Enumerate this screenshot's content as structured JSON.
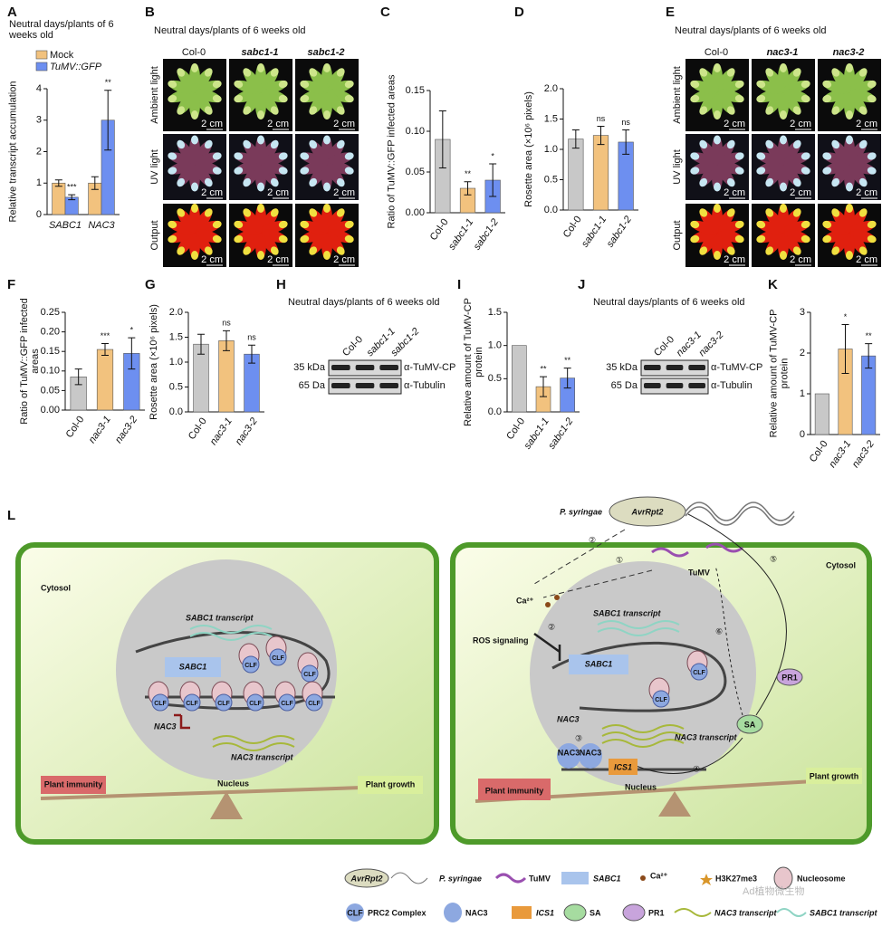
{
  "chart_data": [
    {
      "type": "bar",
      "label": "A",
      "title": "Neutral days/plants of 6 weeks old",
      "ylabel": "Relative transcript accumulation",
      "categories": [
        "SABC1",
        "NAC3"
      ],
      "series": [
        {
          "name": "Mock",
          "color": "#f2c27e",
          "values": [
            1.0,
            1.0
          ],
          "errors": [
            0.1,
            0.2
          ],
          "significance": [
            null,
            null
          ]
        },
        {
          "name": "TuMV::GFP",
          "color": "#6d8ff0",
          "values": [
            0.55,
            3.0
          ],
          "errors": [
            0.08,
            0.95
          ],
          "significance": [
            "***",
            "**"
          ]
        }
      ],
      "ylim": [
        0,
        4
      ],
      "yticks": [
        0,
        1,
        2,
        3,
        4
      ]
    },
    {
      "type": "bar",
      "label": "C",
      "ylabel": "Ratio of TuMV::GFP infected areas",
      "categories": [
        "Col-0",
        "sabc1-1",
        "sabc1-2"
      ],
      "colors": [
        "#c8c8c8",
        "#f2c27e",
        "#6d8ff0"
      ],
      "values": [
        0.09,
        0.03,
        0.04
      ],
      "errors": [
        0.035,
        0.008,
        0.02
      ],
      "significance": [
        null,
        "**",
        "*"
      ],
      "ylim": [
        0,
        0.15
      ],
      "yticks": [
        {
          "value": 0,
          "label": "0.00"
        },
        {
          "value": 0.05,
          "label": "0.05"
        },
        {
          "value": 0.1,
          "label": "0.10"
        },
        {
          "value": 0.15,
          "label": "0.15"
        }
      ]
    },
    {
      "type": "bar",
      "label": "D",
      "ylabel": "Rosette area (×10⁶ pixels)",
      "categories": [
        "Col-0",
        "sabc1-1",
        "sabc1-2"
      ],
      "colors": [
        "#c8c8c8",
        "#f2c27e",
        "#6d8ff0"
      ],
      "values": [
        1.17,
        1.23,
        1.12
      ],
      "errors": [
        0.15,
        0.15,
        0.2
      ],
      "significance": [
        null,
        "ns",
        "ns"
      ],
      "ylim": [
        0,
        2
      ],
      "yticks": [
        {
          "value": 0,
          "label": "0.0"
        },
        {
          "value": 0.5,
          "label": "0.5"
        },
        {
          "value": 1,
          "label": "1.0"
        },
        {
          "value": 1.5,
          "label": "1.5"
        },
        {
          "value": 2,
          "label": "2.0"
        }
      ]
    },
    {
      "type": "bar",
      "label": "F",
      "ylabel": "Ratio of TuMV::GFP infected areas",
      "categories": [
        "Col-0",
        "nac3-1",
        "nac3-2"
      ],
      "colors": [
        "#c8c8c8",
        "#f2c27e",
        "#6d8ff0"
      ],
      "values": [
        0.085,
        0.155,
        0.145
      ],
      "errors": [
        0.02,
        0.015,
        0.04
      ],
      "significance": [
        null,
        "***",
        "*"
      ],
      "ylim": [
        0,
        0.25
      ],
      "yticks": [
        {
          "value": 0,
          "label": "0.00"
        },
        {
          "value": 0.05,
          "label": "0.05"
        },
        {
          "value": 0.1,
          "label": "0.10"
        },
        {
          "value": 0.15,
          "label": "0.15"
        },
        {
          "value": 0.2,
          "label": "0.20"
        },
        {
          "value": 0.25,
          "label": "0.25"
        }
      ]
    },
    {
      "type": "bar",
      "label": "G",
      "ylabel": "Rosette area (×10⁶ pixels)",
      "categories": [
        "Col-0",
        "nac3-1",
        "nac3-2"
      ],
      "colors": [
        "#c8c8c8",
        "#f2c27e",
        "#6d8ff0"
      ],
      "values": [
        1.36,
        1.43,
        1.16
      ],
      "errors": [
        0.2,
        0.2,
        0.18
      ],
      "significance": [
        null,
        "ns",
        "ns"
      ],
      "ylim": [
        0,
        2
      ],
      "yticks": [
        {
          "value": 0,
          "label": "0.0"
        },
        {
          "value": 0.5,
          "label": "0.5"
        },
        {
          "value": 1,
          "label": "1.0"
        },
        {
          "value": 1.5,
          "label": "1.5"
        },
        {
          "value": 2,
          "label": "2.0"
        }
      ]
    },
    {
      "type": "bar",
      "label": "I",
      "ylabel": "Relative amount of TuMV-CP protein",
      "categories": [
        "Col-0",
        "sabc1-1",
        "sabc1-2"
      ],
      "colors": [
        "#c8c8c8",
        "#f2c27e",
        "#6d8ff0"
      ],
      "values": [
        1.0,
        0.38,
        0.51
      ],
      "errors": [
        0,
        0.15,
        0.15
      ],
      "significance": [
        null,
        "**",
        "**"
      ],
      "ylim": [
        0,
        1.5
      ],
      "yticks": [
        {
          "value": 0,
          "label": "0.0"
        },
        {
          "value": 0.5,
          "label": "0.5"
        },
        {
          "value": 1,
          "label": "1.0"
        },
        {
          "value": 1.5,
          "label": "1.5"
        }
      ]
    },
    {
      "type": "bar",
      "label": "K",
      "ylabel": "Relative amount of TuMV-CP protein",
      "categories": [
        "Col-0",
        "nac3-1",
        "nac3-2"
      ],
      "colors": [
        "#c8c8c8",
        "#f2c27e",
        "#6d8ff0"
      ],
      "values": [
        1.0,
        2.1,
        1.93
      ],
      "errors": [
        0,
        0.6,
        0.3
      ],
      "significance": [
        null,
        "*",
        "**"
      ],
      "ylim": [
        0,
        3
      ],
      "yticks": [
        0,
        1,
        2,
        3
      ]
    }
  ],
  "image_panels": [
    {
      "label": "B",
      "title": "Neutral days/plants of 6 weeks old",
      "columns": [
        "Col-0",
        "sabc1-1",
        "sabc1-2"
      ],
      "rows": [
        "Ambient light",
        "UV light",
        "Output"
      ],
      "scale": "2 cm"
    },
    {
      "label": "E",
      "title": "Neutral days/plants of 6 weeks old",
      "columns": [
        "Col-0",
        "nac3-1",
        "nac3-2"
      ],
      "rows": [
        "Ambient light",
        "UV light",
        "Output"
      ],
      "scale": "2 cm"
    }
  ],
  "blot_panels": [
    {
      "label": "H",
      "title": "Neutral days/plants of 6 weeks old",
      "lanes": [
        "Col-0",
        "sabc1-1",
        "sabc1-2"
      ],
      "markers": [
        "35 kDa",
        "65 Da"
      ],
      "antibodies": [
        "α-TuMV-CP",
        "α-Tubulin"
      ]
    },
    {
      "label": "J",
      "title": "Neutral days/plants of 6 weeks old",
      "lanes": [
        "Col-0",
        "nac3-1",
        "nac3-2"
      ],
      "markers": [
        "35 kDa",
        "65 Da"
      ],
      "antibodies": [
        "α-TuMV-CP",
        "α-Tubulin"
      ]
    }
  ],
  "model": {
    "label": "L",
    "left": {
      "compartment": "Cytosol",
      "sabc1_transcript": "SABC1 transcript",
      "sabc1": "SABC1",
      "clf": "CLF",
      "nac3": "NAC3",
      "nac3_transcript": "NAC3 transcript",
      "nucleus": "Nucleus",
      "immunity": "Plant immunity",
      "growth": "Plant growth"
    },
    "right": {
      "pathogen": "P. syringae",
      "effector": "AvrRpt2",
      "virus": "TuMV",
      "calcium": "Ca²⁺",
      "ros": "ROS signaling",
      "compartment": "Cytosol",
      "sabc1_transcript": "SABC1 transcript",
      "sabc1": "SABC1",
      "clf": "CLF",
      "nac3": "NAC3",
      "nac3_transcript": "NAC3 transcript",
      "ics1": "ICS1",
      "sa": "SA",
      "pr1": "PR1",
      "nucleus": "Nucleus",
      "immunity": "Plant immunity",
      "growth": "Plant growth",
      "steps": [
        "②",
        "①",
        "⑤",
        "②",
        "⑥",
        "③",
        "④"
      ]
    },
    "legend": [
      "AvrRpt2",
      "P. syringae",
      "TuMV",
      "SABC1",
      "Ca²⁺",
      "H3K27me3",
      "Nucleosome",
      "CLF",
      "PRC2 Complex",
      "NAC3",
      "ICS1",
      "SA",
      "PR1",
      "NAC3 transcript",
      "SABC1 transcript"
    ],
    "watermark": "Ad植物微生物"
  }
}
